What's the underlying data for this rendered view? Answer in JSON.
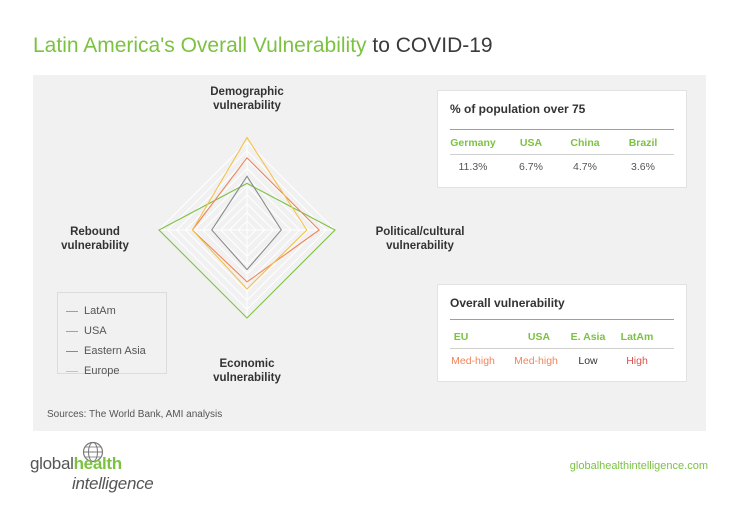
{
  "title": {
    "highlight": "Latin America's Overall Vulnerability",
    "rest": " to COVID-19"
  },
  "colors": {
    "accent": "#7cc242",
    "LatAm": "#7cc242",
    "USA": "#f0845a",
    "Eastern Asia": "#8a8a8a",
    "Europe": "#f5c14a",
    "high": "#d9534f"
  },
  "chart_data": {
    "type": "radar",
    "axes": [
      {
        "key": "demographic",
        "label": [
          "Demographic",
          "vulnerability"
        ]
      },
      {
        "key": "political",
        "label": [
          "Political/cultural",
          "vulnerability"
        ]
      },
      {
        "key": "economic",
        "label": [
          "Economic",
          "vulnerability"
        ]
      },
      {
        "key": "rebound",
        "label": [
          "Rebound",
          "vulnerability"
        ]
      }
    ],
    "range": [
      0,
      10
    ],
    "grid_rings": 10,
    "series": [
      {
        "name": "LatAm",
        "values": [
          5.3,
          10,
          10,
          10
        ]
      },
      {
        "name": "USA",
        "values": [
          8.2,
          8.2,
          5.9,
          6.2
        ]
      },
      {
        "name": "Eastern Asia",
        "values": [
          6.1,
          3.9,
          4.5,
          4.0
        ]
      },
      {
        "name": "Europe",
        "values": [
          10.5,
          6.8,
          6.7,
          6.2
        ]
      }
    ],
    "legend_position": "bottom-left"
  },
  "legend": [
    "LatAm",
    "USA",
    "Eastern Asia",
    "Europe"
  ],
  "population_table": {
    "title": "% of population over 75",
    "headers": [
      "Germany",
      "USA",
      "China",
      "Brazil"
    ],
    "values": [
      "11.3%",
      "6.7%",
      "4.7%",
      "3.6%"
    ]
  },
  "vulnerability_table": {
    "title": "Overall vulnerability",
    "headers": [
      "EU",
      "USA",
      "E. Asia",
      "LatAm"
    ],
    "values": [
      "Med-high",
      "Med-high",
      "Low",
      "High"
    ],
    "value_colors": [
      "#f0845a",
      "#f0845a",
      "#333333",
      "#d9534f"
    ]
  },
  "sources": "Sources:  The World Bank, AMI analysis",
  "logo": {
    "line1_a": "global",
    "line1_b": "health",
    "line2": "intelligence"
  },
  "url": "globalhealthintelligence.com"
}
